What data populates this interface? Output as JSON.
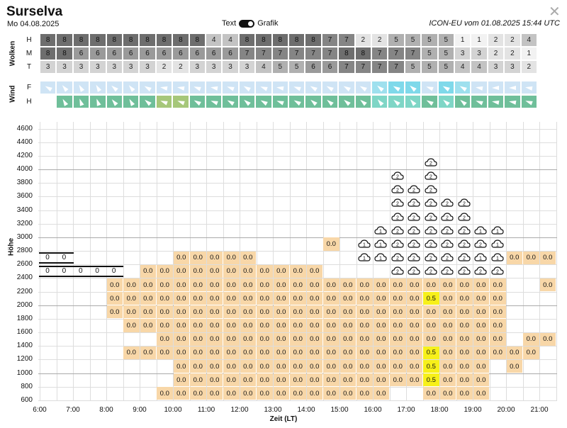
{
  "header": {
    "title": "Surselva",
    "date": "Mo 04.08.2025",
    "toggle_left": "Text",
    "toggle_right": "Grafik",
    "model": "ICON-EU vom 01.08.2025 15:44 UTC",
    "close_icon": "close-icon"
  },
  "clouds": {
    "label": "Wolken",
    "rows": [
      {
        "name": "H",
        "values": [
          "8",
          "8",
          "8",
          "8",
          "8",
          "8",
          "8",
          "8",
          "8",
          "8",
          "4",
          "4",
          "8",
          "8",
          "8",
          "8",
          "8",
          "7",
          "7",
          "2",
          "2",
          "5",
          "5",
          "5",
          "5",
          "1",
          "1",
          "2",
          "2",
          "4"
        ]
      },
      {
        "name": "M",
        "values": [
          "8",
          "8",
          "6",
          "6",
          "6",
          "6",
          "6",
          "6",
          "6",
          "6",
          "6",
          "6",
          "7",
          "7",
          "7",
          "7",
          "7",
          "7",
          "8",
          "8",
          "7",
          "7",
          "7",
          "5",
          "5",
          "3",
          "3",
          "2",
          "2",
          "1"
        ]
      },
      {
        "name": "T",
        "values": [
          "3",
          "3",
          "3",
          "3",
          "3",
          "3",
          "3",
          "2",
          "2",
          "3",
          "3",
          "3",
          "3",
          "4",
          "5",
          "5",
          "6",
          "6",
          "7",
          "7",
          "7",
          "7",
          "5",
          "5",
          "5",
          "4",
          "4",
          "3",
          "3",
          "2"
        ]
      }
    ]
  },
  "wind": {
    "label": "Wind",
    "rows": [
      {
        "name": "F"
      },
      {
        "name": "H"
      }
    ]
  },
  "chart": {
    "ylabel": "Höhe",
    "xlabel": "Zeit (LT)",
    "yticks": [
      "4600",
      "4400",
      "4200",
      "4000",
      "3800",
      "3600",
      "3400",
      "3200",
      "3000",
      "2800",
      "2600",
      "2400",
      "2200",
      "2000",
      "1800",
      "1600",
      "1400",
      "1200",
      "1000",
      "800",
      "600"
    ],
    "xticks": [
      "6:00",
      "7:00",
      "8:00",
      "9:00",
      "10:00",
      "11:00",
      "12:00",
      "13:00",
      "14:00",
      "15:00",
      "16:00",
      "17:00",
      "18:00",
      "19:00",
      "20:00",
      "21:00"
    ]
  },
  "chart_data": {
    "type": "heatmap",
    "xlabel": "Zeit (LT)",
    "ylabel": "Höhe",
    "ylim": [
      600,
      4700
    ],
    "cells": [
      {
        "t": 8.0,
        "h": 2200,
        "v": "0.0"
      }
    ],
    "note_values": [
      "0.0",
      "0.5"
    ],
    "top_indicator": [
      {
        "row": 2700,
        "values": [
          "0",
          "0"
        ]
      },
      {
        "row": 2500,
        "values": [
          "0",
          "0",
          "0",
          "0",
          "0"
        ]
      }
    ]
  }
}
